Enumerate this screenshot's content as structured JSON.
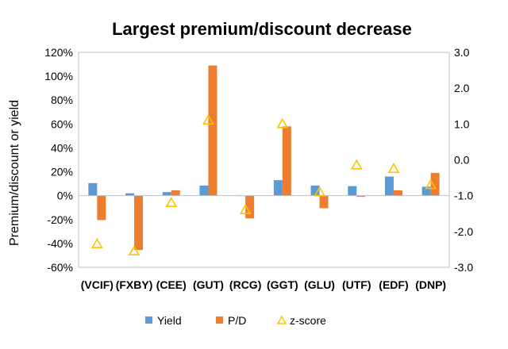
{
  "chart_data": {
    "type": "bar",
    "title": "Largest premium/discount decrease",
    "ylabel": "Premium/discount or yield",
    "categories": [
      "(VCIF)",
      "(FXBY)",
      "(CEE)",
      "(GUT)",
      "(RCG)",
      "(GGT)",
      "(GLU)",
      "(UTF)",
      "(EDF)",
      "(DNP)"
    ],
    "ylim": [
      -60,
      120
    ],
    "y2lim": [
      -3.0,
      3.0
    ],
    "yticks": [
      "120%",
      "100%",
      "80%",
      "60%",
      "40%",
      "20%",
      "0%",
      "-20%",
      "-40%",
      "-60%"
    ],
    "y2ticks": [
      "3.0",
      "2.0",
      "1.0",
      "0.0",
      "-1.0",
      "-2.0",
      "-3.0"
    ],
    "grid": false,
    "legend_position": "bottom",
    "series": [
      {
        "name": "Yield",
        "type": "bar",
        "axis": "left",
        "color": "#5B9BD5",
        "values": [
          10.5,
          2,
          3,
          8.5,
          0,
          13,
          8.5,
          8,
          16,
          7.5
        ]
      },
      {
        "name": "P/D",
        "type": "bar",
        "axis": "left",
        "color": "#ED7D31",
        "values": [
          -20.5,
          -45.5,
          4.5,
          109,
          -19,
          58,
          -10.5,
          -1,
          4.5,
          19
        ]
      },
      {
        "name": "z-score",
        "type": "scatter",
        "axis": "right",
        "color": "#FFC000",
        "marker": "triangle",
        "values": [
          -2.35,
          -2.55,
          -1.2,
          1.1,
          -1.4,
          1.0,
          -0.9,
          -0.15,
          -0.25,
          -0.7
        ]
      }
    ]
  }
}
